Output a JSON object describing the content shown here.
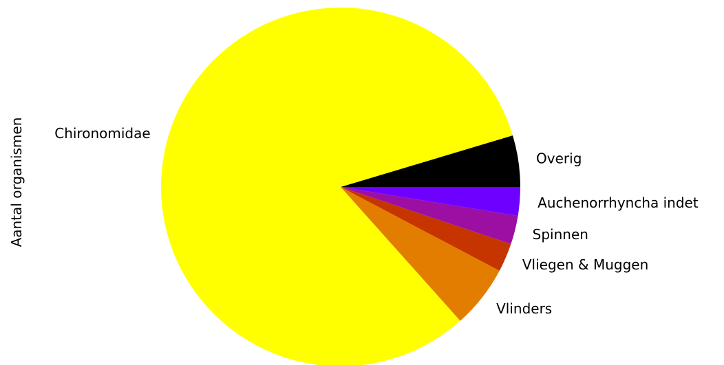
{
  "chart_data": {
    "type": "pie",
    "title": "",
    "ylabel": "Aantal organismen",
    "start_angle_deg": 0,
    "direction": "counterclockwise",
    "slices": [
      {
        "label": "Overig",
        "value": 4.5,
        "color": "#000000"
      },
      {
        "label": "Chironomidae",
        "value": 79.5,
        "color": "#ffff00"
      },
      {
        "label": "Vlinders",
        "value": 5.5,
        "color": "#e27d00"
      },
      {
        "label": "Vliegen & Muggen",
        "value": 2.5,
        "color": "#c63400"
      },
      {
        "label": "Spinnen",
        "value": 2.5,
        "color": "#9c0fa2"
      },
      {
        "label": "Auchenorrhyncha indet",
        "value": 2.5,
        "color": "#6e00ff"
      }
    ]
  }
}
